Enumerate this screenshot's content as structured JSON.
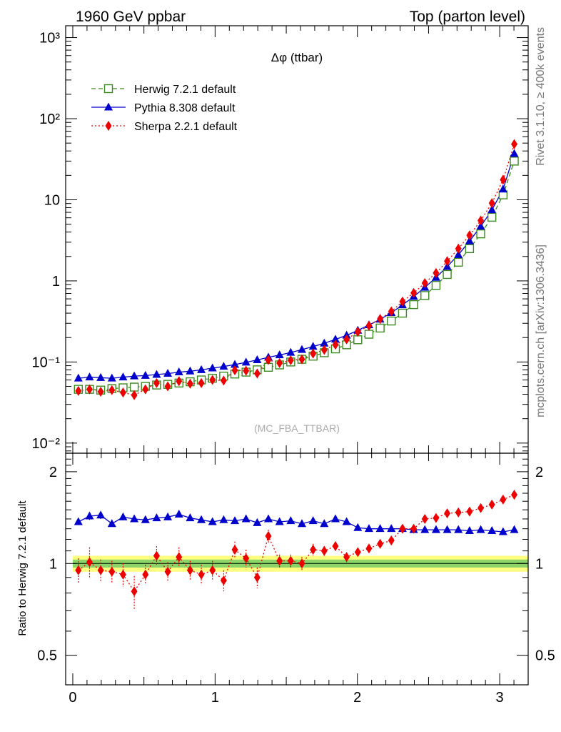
{
  "header": {
    "left": "1960 GeV ppbar",
    "right": "Top (parton level)"
  },
  "side_text": {
    "rivet": "Rivet 3.1.10, ≥ 400k events",
    "mcplots": "mcplots.cern.ch [arXiv:1306.3436]"
  },
  "chart_data": [
    {
      "type": "line",
      "panel": "main",
      "title": "Δφ (ttbar)",
      "analysis_tag": "(MC_FBA_TTBAR)",
      "yscale": "log",
      "xlim": [
        -0.05,
        3.2
      ],
      "ylim": [
        0.0075,
        1400
      ],
      "ytick_labels": [
        "10⁻²",
        "10⁻¹",
        "1",
        "10",
        "10²",
        "10³"
      ],
      "ytick_values": [
        0.01,
        0.1,
        1,
        10,
        100,
        1000
      ],
      "legend_position": "top-left",
      "x": [
        0.0393,
        0.1178,
        0.1963,
        0.2749,
        0.3534,
        0.432,
        0.5105,
        0.589,
        0.6676,
        0.7461,
        0.8247,
        0.9032,
        0.9817,
        1.0603,
        1.1388,
        1.2174,
        1.2959,
        1.3744,
        1.453,
        1.5315,
        1.6101,
        1.6886,
        1.7671,
        1.8457,
        1.9242,
        2.0028,
        2.0813,
        2.1598,
        2.2384,
        2.3169,
        2.3955,
        2.474,
        2.5525,
        2.6311,
        2.7096,
        2.7882,
        2.8667,
        2.9452,
        3.0238,
        3.1023
      ],
      "series": [
        {
          "name": "Herwig 7.2.1 default",
          "color": "#3a8a1e",
          "marker": "open-square",
          "line": "dashed",
          "values": [
            0.046,
            0.046,
            0.045,
            0.047,
            0.048,
            0.049,
            0.05,
            0.052,
            0.053,
            0.055,
            0.057,
            0.06,
            0.063,
            0.067,
            0.071,
            0.075,
            0.08,
            0.086,
            0.092,
            0.1,
            0.108,
            0.118,
            0.13,
            0.145,
            0.163,
            0.188,
            0.22,
            0.262,
            0.32,
            0.4,
            0.51,
            0.66,
            0.88,
            1.2,
            1.7,
            2.5,
            3.8,
            6.1,
            11.5,
            30.0
          ]
        },
        {
          "name": "Pythia 8.308 default",
          "color": "#0000cc",
          "marker": "filled-triangle",
          "line": "solid",
          "values": [
            0.063,
            0.065,
            0.064,
            0.063,
            0.065,
            0.067,
            0.068,
            0.07,
            0.072,
            0.075,
            0.077,
            0.08,
            0.084,
            0.088,
            0.093,
            0.099,
            0.106,
            0.114,
            0.122,
            0.131,
            0.142,
            0.155,
            0.17,
            0.19,
            0.213,
            0.245,
            0.286,
            0.335,
            0.405,
            0.505,
            0.64,
            0.83,
            1.1,
            1.5,
            2.1,
            3.1,
            4.7,
            7.5,
            13.5,
            37.0
          ]
        },
        {
          "name": "Sherpa 2.2.1 default",
          "color": "#ee0000",
          "marker": "filled-diamond",
          "line": "dotted",
          "values": [
            0.044,
            0.046,
            0.043,
            0.045,
            0.042,
            0.039,
            0.046,
            0.055,
            0.05,
            0.058,
            0.054,
            0.055,
            0.06,
            0.059,
            0.079,
            0.078,
            0.072,
            0.106,
            0.097,
            0.105,
            0.108,
            0.127,
            0.141,
            0.163,
            0.19,
            0.235,
            0.28,
            0.34,
            0.42,
            0.555,
            0.71,
            0.94,
            1.25,
            1.75,
            2.5,
            3.65,
            5.55,
            9.1,
            17.7,
            48.5
          ]
        }
      ]
    },
    {
      "type": "line",
      "panel": "ratio",
      "ylabel": "Ratio to Herwig 7.2.1 default",
      "yscale": "log",
      "xlim": [
        -0.05,
        3.2
      ],
      "ylim": [
        0.4,
        2.3
      ],
      "ytick_labels": [
        "0.5",
        "1",
        "2"
      ],
      "ytick_values": [
        0.5,
        1,
        2
      ],
      "xtick_labels": [
        "0",
        "1",
        "2",
        "3"
      ],
      "xtick_values": [
        0,
        1,
        2,
        3
      ],
      "reference_band": {
        "inner": [
          0.97,
          1.03
        ],
        "outer": [
          0.94,
          1.06
        ],
        "inner_color": "#8cd36a",
        "outer_color": "#ffff80"
      },
      "x": [
        0.0393,
        0.1178,
        0.1963,
        0.2749,
        0.3534,
        0.432,
        0.5105,
        0.589,
        0.6676,
        0.7461,
        0.8247,
        0.9032,
        0.9817,
        1.0603,
        1.1388,
        1.2174,
        1.2959,
        1.3744,
        1.453,
        1.5315,
        1.6101,
        1.6886,
        1.7671,
        1.8457,
        1.9242,
        2.0028,
        2.0813,
        2.1598,
        2.2384,
        2.3169,
        2.3955,
        2.474,
        2.5525,
        2.6311,
        2.7096,
        2.7882,
        2.8667,
        2.9452,
        3.0238,
        3.1023
      ],
      "series": [
        {
          "name": "Pythia 8.308 default",
          "color": "#0000cc",
          "marker": "filled-triangle",
          "line": "solid",
          "values": [
            1.37,
            1.43,
            1.44,
            1.35,
            1.42,
            1.4,
            1.39,
            1.41,
            1.42,
            1.45,
            1.41,
            1.39,
            1.37,
            1.39,
            1.38,
            1.4,
            1.36,
            1.4,
            1.37,
            1.38,
            1.35,
            1.38,
            1.35,
            1.4,
            1.37,
            1.31,
            1.3,
            1.3,
            1.3,
            1.3,
            1.29,
            1.29,
            1.29,
            1.29,
            1.29,
            1.28,
            1.29,
            1.28,
            1.27,
            1.29
          ],
          "err": [
            0.02,
            0.04,
            0.04,
            0.03,
            0.03,
            0.02,
            0.02,
            0.02,
            0.02,
            0.03,
            0.02,
            0.02,
            0.02,
            0.02,
            0.02,
            0.02,
            0.02,
            0.02,
            0.02,
            0.02,
            0.02,
            0.02,
            0.02,
            0.02,
            0.02,
            0.02,
            0.01,
            0.01,
            0.01,
            0.01,
            0.01,
            0.01,
            0.01,
            0.01,
            0.01,
            0.01,
            0.01,
            0.01,
            0.01,
            0.01
          ]
        },
        {
          "name": "Sherpa 2.2.1 default",
          "color": "#ee0000",
          "marker": "filled-diamond",
          "line": "dotted",
          "values": [
            0.95,
            1.01,
            0.95,
            0.94,
            0.92,
            0.81,
            0.92,
            1.06,
            0.94,
            1.05,
            0.95,
            0.92,
            0.95,
            0.88,
            1.11,
            1.04,
            0.9,
            1.23,
            1.02,
            1.02,
            1.0,
            1.11,
            1.1,
            1.14,
            1.05,
            1.09,
            1.12,
            1.16,
            1.19,
            1.3,
            1.3,
            1.4,
            1.41,
            1.46,
            1.47,
            1.48,
            1.52,
            1.56,
            1.62,
            1.68
          ],
          "err": [
            0.09,
            0.12,
            0.08,
            0.08,
            0.08,
            0.1,
            0.07,
            0.08,
            0.07,
            0.08,
            0.07,
            0.07,
            0.07,
            0.07,
            0.07,
            0.07,
            0.07,
            0.06,
            0.05,
            0.05,
            0.05,
            0.05,
            0.04,
            0.04,
            0.04,
            0.03,
            0.02,
            0.02,
            0.02,
            0.02,
            0.02,
            0.02,
            0.01,
            0.01,
            0.01,
            0.01,
            0.01,
            0.01,
            0.01,
            0.01
          ]
        }
      ]
    }
  ]
}
